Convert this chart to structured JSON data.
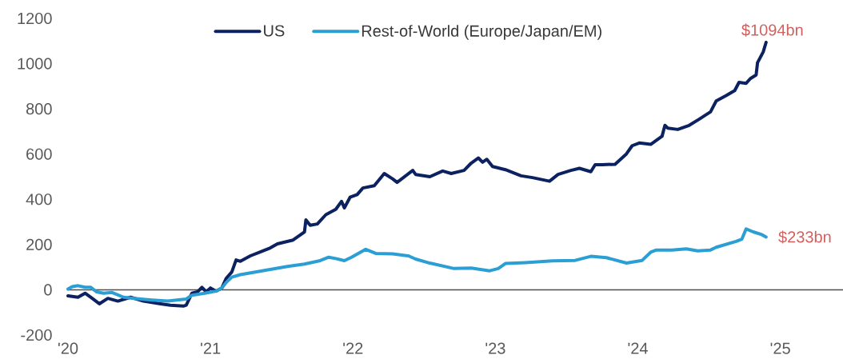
{
  "chart_data": {
    "type": "line",
    "series": [
      {
        "name": "US",
        "color": "#0c2260",
        "x": [
          2020.0,
          2020.07,
          2020.12,
          2020.17,
          2020.22,
          2020.28,
          2020.35,
          2020.44,
          2020.53,
          2020.65,
          2020.72,
          2020.81,
          2020.83,
          2020.87,
          2020.91,
          2020.94,
          2020.97,
          2021.0,
          2021.04,
          2021.08,
          2021.11,
          2021.15,
          2021.18,
          2021.21,
          2021.28,
          2021.36,
          2021.42,
          2021.47,
          2021.51,
          2021.58,
          2021.66,
          2021.67,
          2021.7,
          2021.75,
          2021.81,
          2021.88,
          2021.92,
          2021.94,
          2021.98,
          2022.03,
          2022.07,
          2022.15,
          2022.22,
          2022.28,
          2022.31,
          2022.42,
          2022.44,
          2022.54,
          2022.63,
          2022.69,
          2022.78,
          2022.83,
          2022.88,
          2022.91,
          2022.94,
          2022.98,
          2023.07,
          2023.18,
          2023.26,
          2023.38,
          2023.44,
          2023.53,
          2023.59,
          2023.67,
          2023.7,
          2023.75,
          2023.84,
          2023.92,
          2023.96,
          2024.01,
          2024.09,
          2024.17,
          2024.19,
          2024.21,
          2024.28,
          2024.36,
          2024.43,
          2024.51,
          2024.55,
          2024.62,
          2024.68,
          2024.71,
          2024.76,
          2024.79,
          2024.83,
          2024.84,
          2024.88,
          2024.9
        ],
        "values": [
          -27,
          -33,
          -15,
          -38,
          -62,
          -38,
          -50,
          -33,
          -50,
          -62,
          -68,
          -72,
          -68,
          -15,
          -9,
          11,
          -9,
          8,
          -6,
          8,
          50,
          79,
          132,
          126,
          150,
          170,
          185,
          203,
          209,
          220,
          256,
          309,
          285,
          291,
          332,
          356,
          391,
          362,
          409,
          421,
          450,
          460,
          514,
          490,
          475,
          528,
          510,
          500,
          525,
          514,
          528,
          560,
          583,
          564,
          577,
          545,
          531,
          504,
          496,
          480,
          510,
          528,
          537,
          522,
          553,
          553,
          555,
          601,
          637,
          649,
          643,
          679,
          727,
          715,
          709,
          727,
          754,
          787,
          835,
          859,
          881,
          917,
          913,
          934,
          950,
          1004,
          1052,
          1094
        ]
      },
      {
        "name": "Rest-of-World (Europe/Japan/EM)",
        "color": "#2b9fd4",
        "x": [
          2020.0,
          2020.03,
          2020.07,
          2020.12,
          2020.16,
          2020.2,
          2020.25,
          2020.31,
          2020.39,
          2020.48,
          2020.59,
          2020.7,
          2020.83,
          2020.87,
          2020.96,
          2021.04,
          2021.08,
          2021.11,
          2021.15,
          2021.21,
          2021.32,
          2021.43,
          2021.54,
          2021.66,
          2021.77,
          2021.83,
          2021.88,
          2021.94,
          2021.99,
          2022.09,
          2022.16,
          2022.28,
          2022.39,
          2022.44,
          2022.54,
          2022.71,
          2022.83,
          2022.96,
          2023.02,
          2023.07,
          2023.21,
          2023.4,
          2023.56,
          2023.67,
          2023.78,
          2023.92,
          2024.03,
          2024.09,
          2024.13,
          2024.24,
          2024.34,
          2024.42,
          2024.51,
          2024.55,
          2024.69,
          2024.73,
          2024.76,
          2024.81,
          2024.87,
          2024.9
        ],
        "values": [
          3,
          14,
          18,
          11,
          11,
          -9,
          -15,
          -12,
          -33,
          -39,
          -45,
          -50,
          -41,
          -24,
          -15,
          -6,
          8,
          32,
          56,
          67,
          79,
          91,
          103,
          114,
          129,
          144,
          138,
          129,
          144,
          179,
          161,
          159,
          150,
          136,
          118,
          94,
          96,
          84,
          94,
          116,
          120,
          128,
          130,
          148,
          142,
          118,
          130,
          166,
          176,
          176,
          181,
          172,
          176,
          188,
          214,
          224,
          269,
          256,
          244,
          233
        ]
      }
    ],
    "xlim": [
      2020,
      2025.44
    ],
    "xticks": [
      {
        "value": 2020,
        "label": "'20"
      },
      {
        "value": 2021,
        "label": "'21"
      },
      {
        "value": 2022,
        "label": "'22"
      },
      {
        "value": 2023,
        "label": "'23"
      },
      {
        "value": 2024,
        "label": "'24"
      },
      {
        "value": 2025,
        "label": "'25"
      }
    ],
    "ylim": [
      -200,
      1200
    ],
    "yticks": [
      -200,
      0,
      200,
      400,
      600,
      800,
      1000,
      1200
    ],
    "ref_lines": [
      {
        "axis": "y",
        "value": 0,
        "color": "#4d4d4d"
      }
    ],
    "annotations": [
      {
        "text": "$1094bn",
        "x": 2024.9,
        "y": 1094
      },
      {
        "text": "$233bn",
        "x": 2024.9,
        "y": 233
      }
    ],
    "legend": "top",
    "marker": "none"
  }
}
